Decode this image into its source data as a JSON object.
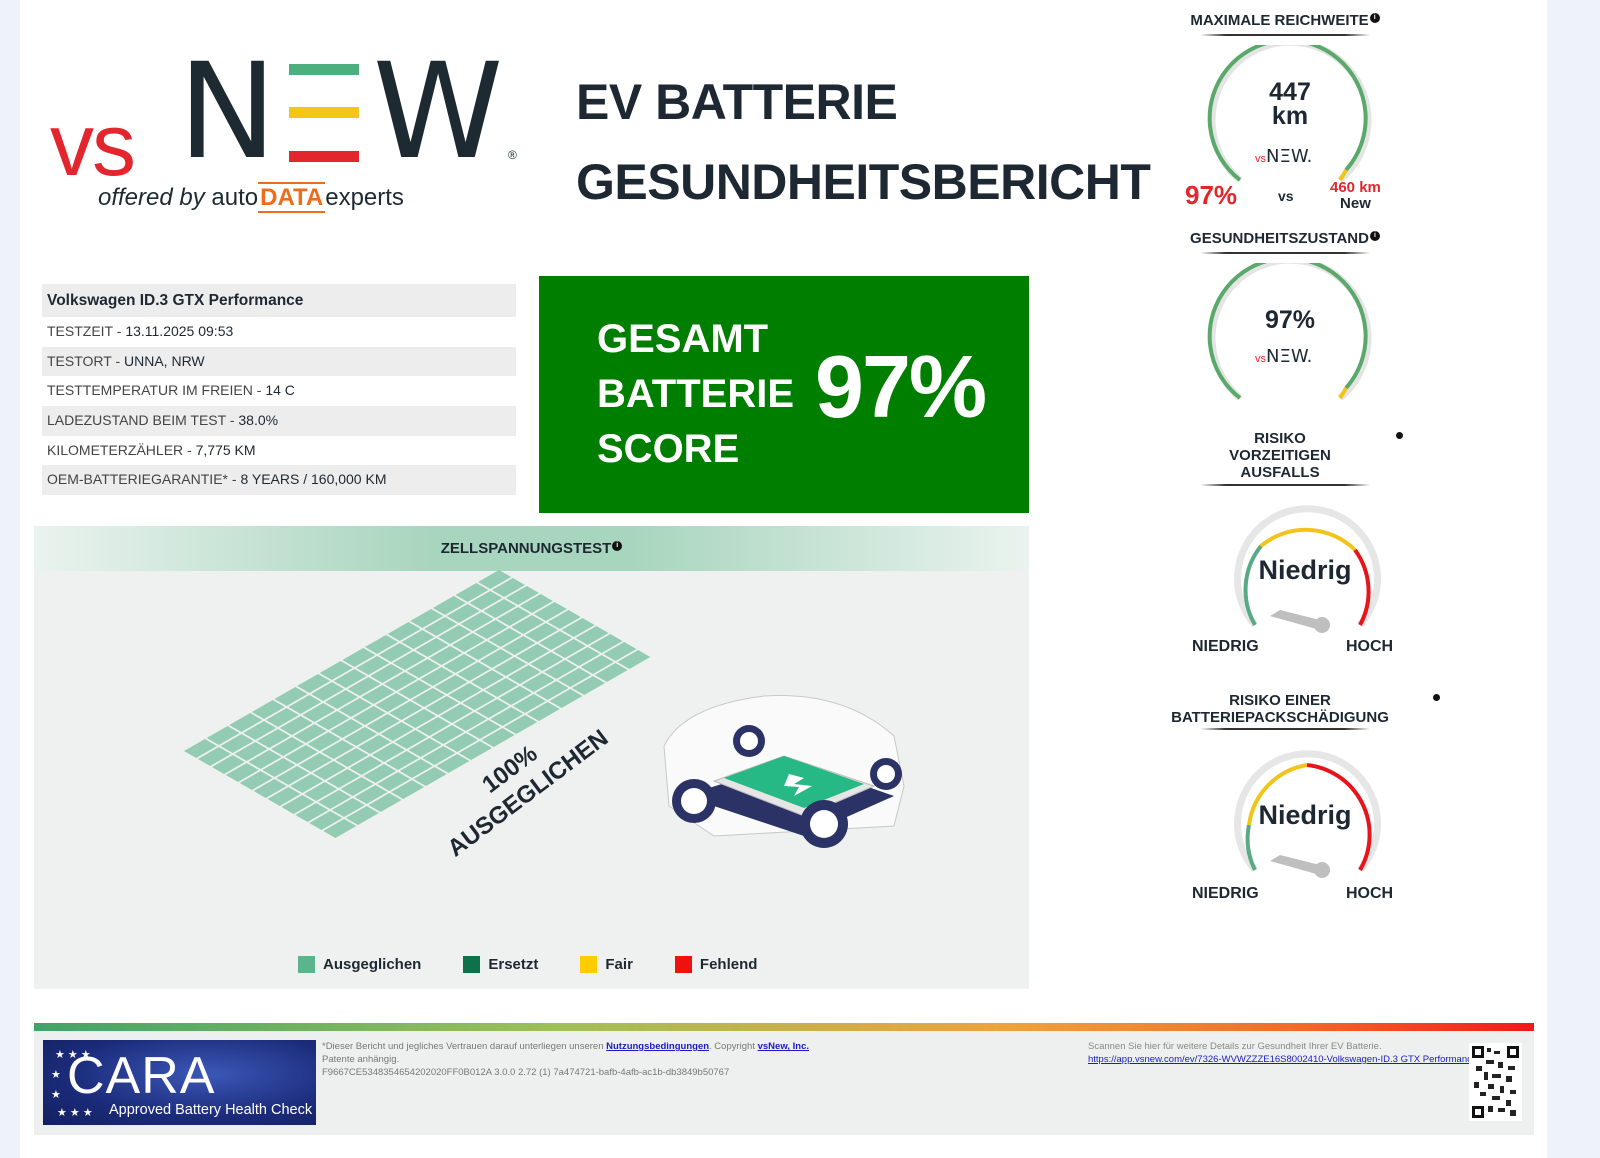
{
  "brand": {
    "vs": "vs",
    "n": "N",
    "w": "W",
    "registered": "®",
    "offered_by": "offered by",
    "auto": "auto",
    "data": "DATA",
    "experts": "experts",
    "stripe_colors": [
      "#4caf7d",
      "#f5c518",
      "#e3262d"
    ]
  },
  "report": {
    "title_line1": "EV BATTERIE",
    "title_line2": "GESUNDHEITSBERICHT"
  },
  "vehicle": {
    "name": "Volkswagen ID.3 GTX Performance",
    "rows": [
      {
        "label": "TESTZEIT - ",
        "value": "13.11.2025 09:53"
      },
      {
        "label": "TESTORT - ",
        "value": "UNNA, NRW"
      },
      {
        "label": "TESTTEMPERATUR IM FREIEN - ",
        "value": "14 C"
      },
      {
        "label": "LADEZUSTAND BEIM TEST - ",
        "value": "38.0%"
      },
      {
        "label": "KILOMETERZÄHLER - ",
        "value": "7,775 KM"
      },
      {
        "label": "OEM-BATTERIEGARANTIE* - ",
        "value": "8 YEARS / 160,000 KM"
      }
    ]
  },
  "score": {
    "line1": "GESAMT",
    "line2": "BATTERIE",
    "line3": "SCORE",
    "value": "97%",
    "color": "#007e00"
  },
  "cell_test": {
    "title": "ZELLSPANNUNGSTEST",
    "info_icon": "i",
    "result_pct": "100%",
    "result_label": "AUSGEGLICHEN",
    "legend": [
      {
        "label": "Ausgeglichen",
        "color": "#5bb48c"
      },
      {
        "label": "Ersetzt",
        "color": "#0d7249"
      },
      {
        "label": "Fair",
        "color": "#ffcc00"
      },
      {
        "label": "Fehlend",
        "color": "#ef1010"
      }
    ]
  },
  "range": {
    "title": "MAXIMALE REICHWEITE",
    "value": "447",
    "unit": "km",
    "percent": "97%",
    "vs": "vs",
    "new_value": "460 km",
    "new_label": "New"
  },
  "health": {
    "title": "GESUNDHEITSZUSTAND",
    "value": "97%"
  },
  "premature_failure": {
    "title_line1": "RISIKO",
    "title_line2": "VORZEITIGEN",
    "title_line3": "AUSFALLS",
    "value": "Niedrig",
    "low_label": "NIEDRIG",
    "high_label": "HOCH"
  },
  "pack_damage": {
    "title_line1": "RISIKO EINER",
    "title_line2": "BATTERIEPACKSCHÄDIGUNG",
    "value": "Niedrig",
    "low_label": "NIEDRIG",
    "high_label": "HOCH"
  },
  "footer": {
    "cara_big": "CARA",
    "cara_sub": "Approved Battery Health Check",
    "disclaimer_prefix": "*Dieser Bericht und jegliches Vertrauen darauf unterliegen unseren ",
    "terms_link": "Nutzungsbedingungen",
    "copyright_prefix": ". Copyright ",
    "company_link": "vsNew, Inc.",
    "patents": "Patente anhängig.",
    "hash": "F9667CE5348354654202020FF0B012A 3.0.0 2.72 (1) 7a474721-bafb-4afb-ac1b-db3849b50767",
    "scan_text": "Scannen Sie hier für weitere Details zur Gesundheit Ihrer EV Batterie.",
    "scan_link": "https://app.vsnew.com/ev/7326-WVWZZZE16S8002410-Volkswagen-ID.3 GTX Performance"
  }
}
